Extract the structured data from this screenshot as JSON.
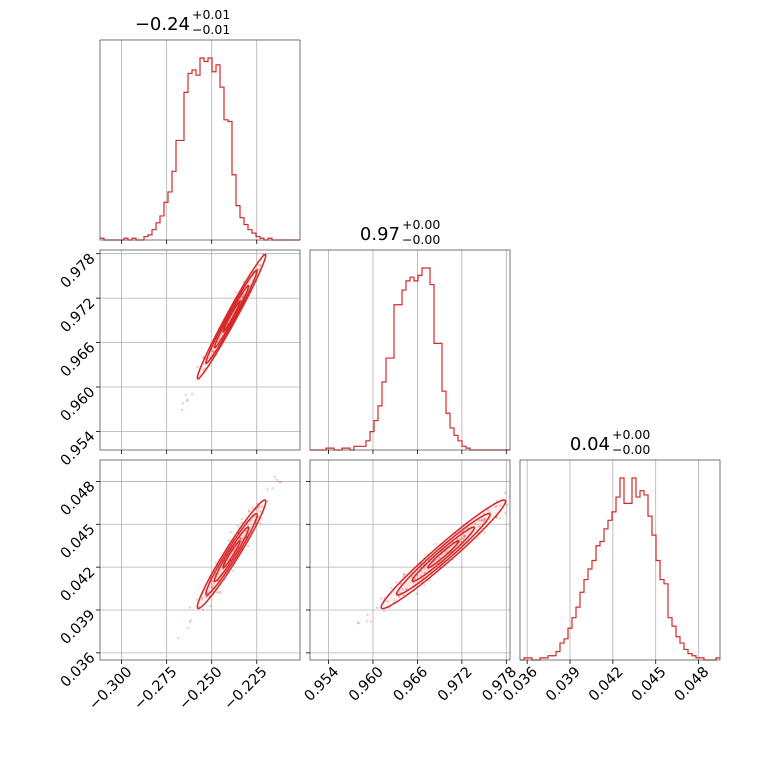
{
  "chart_data": {
    "type": "corner",
    "color": "#d62728",
    "grid": true,
    "parameters": [
      {
        "label": "",
        "median": "0.24",
        "sign": "−",
        "plus": "+0.01",
        "minus": "−0.01",
        "range": [
          -0.312,
          -0.201
        ],
        "ticks": [
          -0.3,
          -0.275,
          -0.25,
          -0.225
        ],
        "tick_labels": [
          "−0.300",
          "−0.275",
          "−0.250",
          "−0.225"
        ]
      },
      {
        "label": "",
        "median": "0.97",
        "sign": "",
        "plus": "+0.00",
        "minus": "−0.00",
        "range": [
          0.9515,
          0.9785
        ],
        "ticks": [
          0.954,
          0.96,
          0.966,
          0.972,
          0.978
        ],
        "tick_labels": [
          "0.954",
          "0.960",
          "0.966",
          "0.972",
          "0.978"
        ]
      },
      {
        "label": "",
        "median": "0.04",
        "sign": "",
        "plus": "+0.00",
        "minus": "−0.00",
        "range": [
          0.0355,
          0.0495
        ],
        "ticks": [
          0.036,
          0.039,
          0.042,
          0.045,
          0.048
        ],
        "tick_labels": [
          "0.036",
          "0.039",
          "0.042",
          "0.045",
          "0.048"
        ]
      }
    ],
    "histograms": [
      {
        "param": 0,
        "bin_start": -0.312,
        "bin_width": 0.00222,
        "counts": [
          1,
          0,
          0,
          0,
          0,
          0,
          1,
          0,
          1,
          0,
          0,
          2,
          3,
          6,
          10,
          14,
          22,
          28,
          40,
          58,
          58,
          86,
          97,
          99,
          96,
          106,
          104,
          106,
          98,
          102,
          89,
          70,
          69,
          38,
          20,
          13,
          9,
          6,
          4,
          2,
          1,
          0,
          1,
          0,
          0,
          0,
          0,
          0,
          0,
          0
        ]
      },
      {
        "param": 1,
        "bin_start": 0.9515,
        "bin_width": 0.00054,
        "counts": [
          0,
          0,
          0,
          0,
          1,
          1,
          0,
          0,
          1,
          1,
          0,
          2,
          2,
          2,
          5,
          10,
          16,
          24,
          37,
          50,
          50,
          79,
          79,
          87,
          92,
          94,
          92,
          95,
          99,
          99,
          90,
          58,
          58,
          32,
          20,
          12,
          8,
          5,
          2,
          1,
          0,
          0,
          0,
          0,
          0,
          0,
          0,
          0,
          0,
          0
        ]
      },
      {
        "param": 2,
        "bin_start": 0.0355,
        "bin_width": 0.00028,
        "counts": [
          0,
          1,
          1,
          0,
          0,
          1,
          1,
          2,
          2,
          4,
          8,
          10,
          15,
          20,
          25,
          32,
          38,
          43,
          47,
          54,
          56,
          62,
          66,
          70,
          77,
          86,
          74,
          74,
          86,
          77,
          80,
          78,
          68,
          59,
          47,
          38,
          36,
          20,
          16,
          11,
          8,
          5,
          3,
          2,
          1,
          1,
          0,
          0,
          0,
          1
        ]
      }
    ],
    "scatter_pairs": [
      {
        "x": 0,
        "y": 1,
        "center": [
          -0.239,
          0.9695
        ],
        "sx": 0.0095,
        "sy": 0.0042,
        "rho": 0.985,
        "nscatter": 130,
        "seed": 11
      },
      {
        "x": 0,
        "y": 2,
        "center": [
          -0.239,
          0.0429
        ],
        "sx": 0.0095,
        "sy": 0.0019,
        "rho": 0.97,
        "nscatter": 170,
        "seed": 23
      },
      {
        "x": 1,
        "y": 2,
        "center": [
          0.9695,
          0.0429
        ],
        "sx": 0.0042,
        "sy": 0.0019,
        "rho": 0.975,
        "nscatter": 170,
        "seed": 37
      }
    ],
    "contour_levels": [
      0.5,
      1.0,
      1.5,
      2.0
    ]
  }
}
